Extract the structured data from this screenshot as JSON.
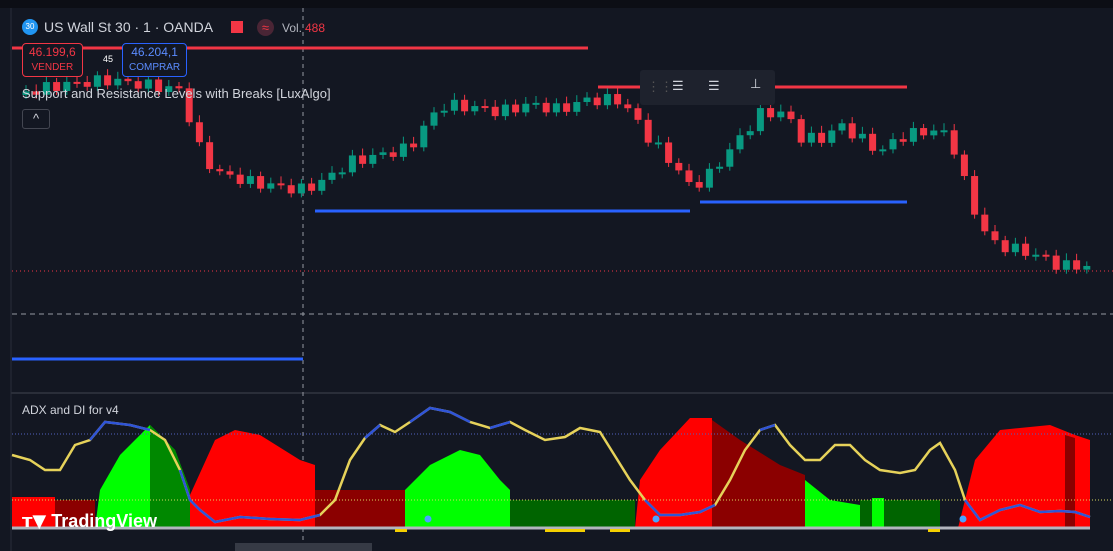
{
  "header": {
    "badge": "30",
    "symbol": "US Wall St 30 · 1 · OANDA",
    "volume_label": "Vol.",
    "volume": "488"
  },
  "trade": {
    "sell_price": "46.199,6",
    "sell_label": "VENDER",
    "spread": "45",
    "buy_price": "46.204,1",
    "buy_label": "COMPRAR"
  },
  "indicators": {
    "sr": "Support and Resistance Levels with Breaks [LuxAlgo]",
    "adx": "ADX and DI for v4"
  },
  "brand": "TradingView"
}
